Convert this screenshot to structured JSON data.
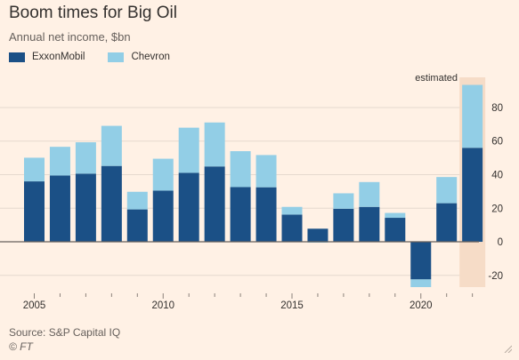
{
  "title": "Boom times for Big Oil",
  "subtitle": "Annual net income, $bn",
  "legend": [
    {
      "name": "ExxonMobil",
      "color": "#1b5086"
    },
    {
      "name": "Chevron",
      "color": "#92cee6"
    }
  ],
  "annotation": "estimated",
  "source": "Source: S&P Capital IQ",
  "copyright": "© FT",
  "colors": {
    "background": "#fff1e5",
    "exxon": "#1b5086",
    "chevron": "#92cee6",
    "estimated_band": "#f6dcc7",
    "grid": "#e6d9ce",
    "zero_line": "#66605c",
    "text": "#33302e"
  },
  "chart_data": {
    "type": "bar",
    "stacked": true,
    "x": [
      2005,
      2006,
      2007,
      2008,
      2009,
      2010,
      2011,
      2012,
      2013,
      2014,
      2015,
      2016,
      2017,
      2018,
      2019,
      2020,
      2021,
      2022
    ],
    "series": [
      {
        "name": "ExxonMobil",
        "values": [
          36,
          39.5,
          40.6,
          45.2,
          19.3,
          30.5,
          41.1,
          44.9,
          32.6,
          32.5,
          16.2,
          7.8,
          19.7,
          20.8,
          14.3,
          -22.4,
          23.0,
          56.0
        ]
      },
      {
        "name": "Chevron",
        "values": [
          14.1,
          17.1,
          18.7,
          23.9,
          10.5,
          19.0,
          26.9,
          26.2,
          21.4,
          19.2,
          4.6,
          -0.5,
          9.2,
          14.8,
          2.9,
          -5.5,
          15.6,
          37.5
        ]
      }
    ],
    "estimated_years": [
      2022
    ],
    "xticks": [
      "2005",
      "2010",
      "2015",
      "2020"
    ],
    "yticks": [
      "-20",
      "0",
      "20",
      "40",
      "60",
      "80"
    ],
    "ylim": [
      -27,
      98
    ],
    "grid": true,
    "y_axis_side": "right",
    "legend_position": "top-left"
  }
}
